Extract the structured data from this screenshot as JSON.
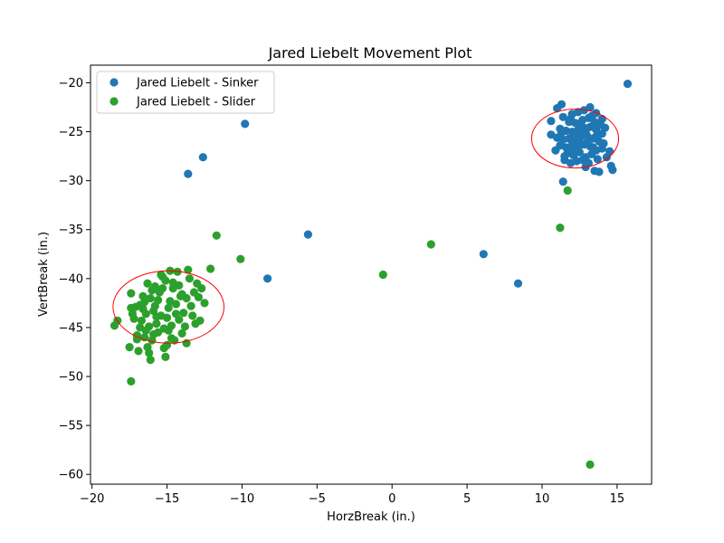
{
  "chart_data": {
    "type": "scatter",
    "title": "Jared Liebelt Movement Plot",
    "xlabel": "HorzBreak (in.)",
    "ylabel": "VertBreak (in.)",
    "xlim": [
      -20.1,
      17.3
    ],
    "ylim": [
      -61.0,
      -18.2
    ],
    "xticks": [
      -20,
      -15,
      -10,
      -5,
      0,
      5,
      10,
      15
    ],
    "xtick_labels": [
      "−20",
      "−15",
      "−10",
      "−5",
      "0",
      "5",
      "10",
      "15"
    ],
    "yticks": [
      -20,
      -25,
      -30,
      -35,
      -40,
      -45,
      -50,
      -55,
      -60
    ],
    "ytick_labels": [
      "−20",
      "−25",
      "−30",
      "−35",
      "−40",
      "−45",
      "−50",
      "−55",
      "−60"
    ],
    "grid": false,
    "legend_position": "top-left",
    "series": [
      {
        "name": "Jared Liebelt - Sinker",
        "color": "#1f77b4",
        "points": [
          [
            15.7,
            -20.1
          ],
          [
            -9.8,
            -24.2
          ],
          [
            -12.6,
            -27.6
          ],
          [
            -13.6,
            -29.3
          ],
          [
            -5.6,
            -35.5
          ],
          [
            -8.3,
            -40.0
          ],
          [
            6.1,
            -37.5
          ],
          [
            8.4,
            -40.5
          ],
          [
            11.4,
            -30.1
          ],
          [
            10.6,
            -23.9
          ],
          [
            11.0,
            -22.6
          ],
          [
            11.3,
            -22.2
          ],
          [
            13.2,
            -22.5
          ],
          [
            14.0,
            -23.7
          ],
          [
            14.2,
            -24.6
          ],
          [
            10.6,
            -25.3
          ],
          [
            10.9,
            -26.9
          ],
          [
            11.5,
            -27.9
          ],
          [
            14.5,
            -27.0
          ],
          [
            14.3,
            -27.6
          ],
          [
            14.6,
            -28.5
          ],
          [
            14.7,
            -28.9
          ],
          [
            13.5,
            -29.0
          ],
          [
            13.8,
            -29.1
          ],
          [
            12.9,
            -28.6
          ],
          [
            11.9,
            -28.2
          ],
          [
            11.4,
            -23.5
          ],
          [
            11.8,
            -24.0
          ],
          [
            12.0,
            -23.2
          ],
          [
            12.4,
            -23.0
          ],
          [
            12.8,
            -22.8
          ],
          [
            13.6,
            -23.1
          ],
          [
            12.2,
            -24.1
          ],
          [
            12.7,
            -23.8
          ],
          [
            13.1,
            -23.6
          ],
          [
            13.5,
            -24.0
          ],
          [
            13.9,
            -24.3
          ],
          [
            11.2,
            -24.7
          ],
          [
            11.6,
            -24.9
          ],
          [
            12.0,
            -25.0
          ],
          [
            12.4,
            -24.8
          ],
          [
            12.8,
            -24.6
          ],
          [
            13.2,
            -24.5
          ],
          [
            13.6,
            -24.8
          ],
          [
            14.0,
            -25.2
          ],
          [
            11.0,
            -25.6
          ],
          [
            11.4,
            -25.8
          ],
          [
            11.8,
            -25.7
          ],
          [
            12.2,
            -25.9
          ],
          [
            12.6,
            -25.5
          ],
          [
            13.0,
            -25.4
          ],
          [
            13.4,
            -25.7
          ],
          [
            13.8,
            -26.0
          ],
          [
            14.1,
            -26.2
          ],
          [
            11.2,
            -26.4
          ],
          [
            11.6,
            -26.6
          ],
          [
            12.0,
            -26.5
          ],
          [
            12.4,
            -26.8
          ],
          [
            12.8,
            -26.3
          ],
          [
            13.2,
            -26.5
          ],
          [
            13.6,
            -26.9
          ],
          [
            14.0,
            -26.7
          ],
          [
            11.7,
            -27.2
          ],
          [
            12.1,
            -27.4
          ],
          [
            12.5,
            -27.1
          ],
          [
            12.9,
            -27.6
          ],
          [
            13.3,
            -27.3
          ],
          [
            13.7,
            -27.8
          ],
          [
            12.3,
            -28.0
          ],
          [
            12.7,
            -27.9
          ],
          [
            13.1,
            -28.2
          ],
          [
            11.5,
            -27.5
          ],
          [
            12.0,
            -26.0
          ],
          [
            12.5,
            -26.2
          ],
          [
            13.0,
            -26.1
          ],
          [
            13.5,
            -25.6
          ],
          [
            12.2,
            -25.2
          ],
          [
            12.6,
            -24.3
          ],
          [
            13.3,
            -23.4
          ],
          [
            11.9,
            -23.7
          ],
          [
            13.7,
            -25.3
          ],
          [
            12.9,
            -25.0
          ],
          [
            11.3,
            -25.1
          ],
          [
            13.4,
            -26.6
          ],
          [
            12.1,
            -26.9
          ]
        ]
      },
      {
        "name": "Jared Liebelt - Slider",
        "color": "#2ca02c",
        "points": [
          [
            13.2,
            -59.0
          ],
          [
            11.7,
            -31.0
          ],
          [
            11.2,
            -34.8
          ],
          [
            2.6,
            -36.5
          ],
          [
            -0.6,
            -39.6
          ],
          [
            -10.1,
            -38.0
          ],
          [
            -11.7,
            -35.6
          ],
          [
            -12.1,
            -39.0
          ],
          [
            -17.4,
            -50.5
          ],
          [
            -18.3,
            -44.3
          ],
          [
            -18.5,
            -44.8
          ],
          [
            -17.5,
            -47.0
          ],
          [
            -16.1,
            -48.3
          ],
          [
            -15.1,
            -48.0
          ],
          [
            -13.7,
            -46.6
          ],
          [
            -17.4,
            -41.5
          ],
          [
            -17.4,
            -43.0
          ],
          [
            -17.2,
            -44.1
          ],
          [
            -17.0,
            -45.8
          ],
          [
            -16.8,
            -42.7
          ],
          [
            -16.6,
            -41.8
          ],
          [
            -16.4,
            -43.6
          ],
          [
            -16.2,
            -44.9
          ],
          [
            -16.0,
            -46.3
          ],
          [
            -15.8,
            -40.8
          ],
          [
            -15.6,
            -42.2
          ],
          [
            -15.4,
            -43.8
          ],
          [
            -15.2,
            -45.1
          ],
          [
            -15.0,
            -46.8
          ],
          [
            -14.8,
            -39.2
          ],
          [
            -14.6,
            -41.0
          ],
          [
            -14.4,
            -42.6
          ],
          [
            -14.2,
            -44.2
          ],
          [
            -14.0,
            -45.6
          ],
          [
            -16.9,
            -47.4
          ],
          [
            -16.5,
            -46.0
          ],
          [
            -16.3,
            -40.5
          ],
          [
            -16.1,
            -42.0
          ],
          [
            -15.9,
            -43.3
          ],
          [
            -15.7,
            -44.6
          ],
          [
            -15.5,
            -41.4
          ],
          [
            -15.3,
            -39.8
          ],
          [
            -15.1,
            -40.2
          ],
          [
            -14.9,
            -43.0
          ],
          [
            -14.7,
            -44.8
          ],
          [
            -14.5,
            -46.3
          ],
          [
            -14.3,
            -39.3
          ],
          [
            -14.1,
            -41.8
          ],
          [
            -13.9,
            -43.5
          ],
          [
            -13.7,
            -42.0
          ],
          [
            -13.5,
            -40.0
          ],
          [
            -13.3,
            -43.8
          ],
          [
            -13.1,
            -44.6
          ],
          [
            -12.9,
            -41.9
          ],
          [
            -12.7,
            -41.0
          ],
          [
            -12.5,
            -42.5
          ],
          [
            -12.8,
            -44.3
          ],
          [
            -13.0,
            -40.5
          ],
          [
            -13.6,
            -39.1
          ],
          [
            -17.1,
            -42.9
          ],
          [
            -16.7,
            -44.3
          ],
          [
            -16.0,
            -41.2
          ],
          [
            -15.4,
            -39.6
          ],
          [
            -14.6,
            -40.4
          ],
          [
            -14.0,
            -41.6
          ],
          [
            -15.0,
            -44.0
          ],
          [
            -15.6,
            -45.5
          ],
          [
            -16.4,
            -45.3
          ],
          [
            -17.0,
            -46.2
          ],
          [
            -16.2,
            -47.6
          ],
          [
            -15.2,
            -47.1
          ],
          [
            -14.4,
            -43.6
          ],
          [
            -13.8,
            -44.9
          ],
          [
            -16.6,
            -43.1
          ],
          [
            -15.8,
            -42.8
          ],
          [
            -14.8,
            -42.3
          ],
          [
            -15.9,
            -45.7
          ],
          [
            -14.2,
            -40.7
          ],
          [
            -16.8,
            -45.0
          ],
          [
            -13.4,
            -42.8
          ],
          [
            -15.3,
            -41.0
          ],
          [
            -16.5,
            -42.4
          ],
          [
            -14.9,
            -45.3
          ],
          [
            -15.7,
            -43.9
          ],
          [
            -17.3,
            -43.6
          ],
          [
            -16.3,
            -47.0
          ],
          [
            -14.7,
            -46.1
          ],
          [
            -13.2,
            -41.4
          ]
        ]
      }
    ],
    "annotations": [
      {
        "type": "ellipse",
        "color": "#ff0000",
        "cx": 12.2,
        "cy": -25.7,
        "rx": 2.9,
        "ry": 3.0
      },
      {
        "type": "ellipse",
        "color": "#ff0000",
        "cx": -14.9,
        "cy": -42.9,
        "rx": 3.7,
        "ry": 3.7
      }
    ]
  }
}
